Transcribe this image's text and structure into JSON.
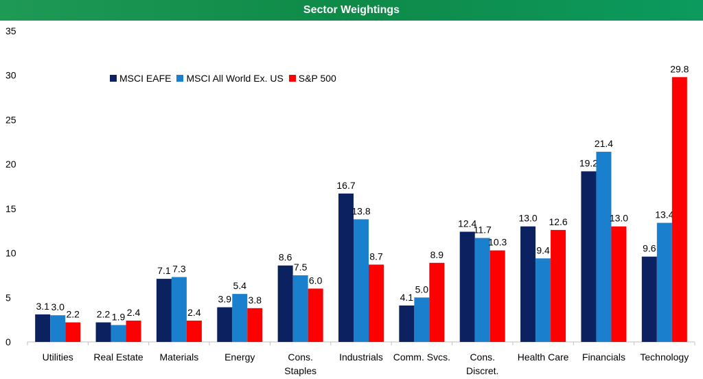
{
  "chart_data": {
    "type": "bar",
    "title": "Sector Weightings",
    "categories": [
      "Utilities",
      "Real Estate",
      "Materials",
      "Energy",
      "Cons. Staples",
      "Industrials",
      "Comm. Svcs.",
      "Cons. Discret.",
      "Health Care",
      "Financials",
      "Technology"
    ],
    "category_lines": [
      [
        "Utilities"
      ],
      [
        "Real Estate"
      ],
      [
        "Materials"
      ],
      [
        "Energy"
      ],
      [
        "Cons.",
        "Staples"
      ],
      [
        "Industrials"
      ],
      [
        "Comm. Svcs."
      ],
      [
        "Cons.",
        "Discret."
      ],
      [
        "Health Care"
      ],
      [
        "Financials"
      ],
      [
        "Technology"
      ]
    ],
    "series": [
      {
        "name": "MSCI EAFE",
        "color": "#0b2160",
        "values": [
          3.1,
          2.2,
          7.1,
          3.9,
          8.6,
          16.7,
          4.1,
          12.4,
          13.0,
          19.2,
          9.6
        ]
      },
      {
        "name": "MSCI All World Ex. US",
        "color": "#1a7fcc",
        "values": [
          3.0,
          1.9,
          7.3,
          5.4,
          7.5,
          13.8,
          5.0,
          11.7,
          9.4,
          21.4,
          13.4
        ]
      },
      {
        "name": "S&P 500",
        "color": "#ff0000",
        "values": [
          2.2,
          2.4,
          2.4,
          3.8,
          6.0,
          8.7,
          8.9,
          10.3,
          12.6,
          13.0,
          29.8
        ]
      }
    ],
    "ylim": [
      0,
      35
    ],
    "yticks": [
      0,
      5,
      10,
      15,
      20,
      25,
      30,
      35
    ],
    "grid": false,
    "legend": "top-left",
    "xlabel": "",
    "ylabel": ""
  }
}
